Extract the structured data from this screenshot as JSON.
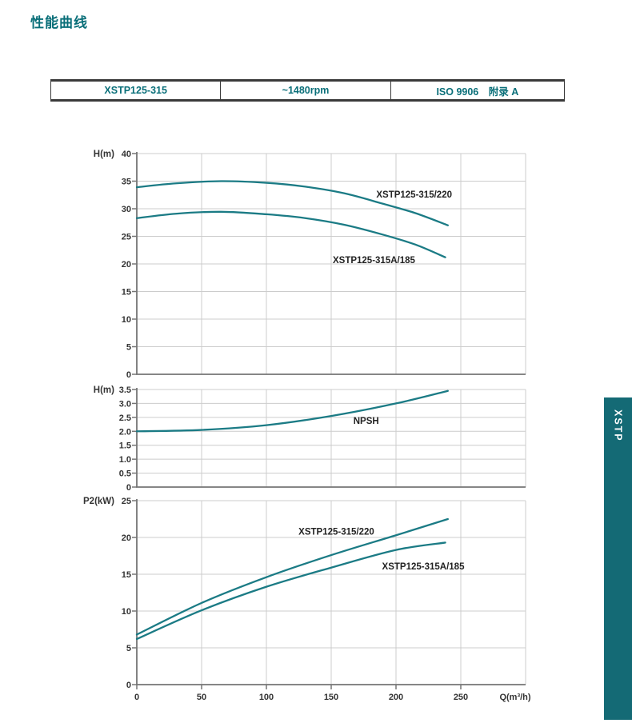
{
  "page": {
    "title": "性能曲线"
  },
  "header_table": {
    "cells": [
      {
        "label": "XSTP125-315"
      },
      {
        "label": "~1480rpm"
      },
      {
        "label": "ISO 9906　附录 A"
      }
    ]
  },
  "side_tab": {
    "label": "XSTP"
  },
  "colors": {
    "accent": "#0a6f79",
    "curve": "#1b7b85",
    "grid": "#cccccc",
    "spine": "#757575",
    "text": "#333333",
    "curve_label": "#222222",
    "tab_bg": "#146a75"
  },
  "chart_data": [
    {
      "type": "line",
      "title": "Head vs flow curves",
      "ylabel": "H(m)",
      "xlabel": "",
      "ylim": [
        0,
        40
      ],
      "xlim": [
        0,
        300
      ],
      "grid": true,
      "y_ticks": [
        [
          40,
          "40"
        ],
        [
          35,
          "35"
        ],
        [
          30,
          "30"
        ],
        [
          25,
          "25"
        ],
        [
          20,
          "20"
        ],
        [
          15,
          "15"
        ],
        [
          10,
          "10"
        ],
        [
          5,
          "5"
        ],
        [
          0,
          "0"
        ]
      ],
      "x_grid": [
        50,
        100,
        150,
        200,
        250,
        300
      ],
      "series": [
        {
          "name": "XSTP125-315/220",
          "points": [
            [
              0,
              33.9
            ],
            [
              30,
              34.6
            ],
            [
              65,
              35.0
            ],
            [
              100,
              34.7
            ],
            [
              130,
              34.0
            ],
            [
              160,
              32.8
            ],
            [
              190,
              30.9
            ],
            [
              215,
              29.2
            ],
            [
              240,
              27.0
            ]
          ]
        },
        {
          "name": "XSTP125-315A/185",
          "points": [
            [
              0,
              28.3
            ],
            [
              30,
              29.1
            ],
            [
              65,
              29.45
            ],
            [
              100,
              29.0
            ],
            [
              130,
              28.3
            ],
            [
              160,
              27.1
            ],
            [
              190,
              25.3
            ],
            [
              215,
              23.5
            ],
            [
              238,
              21.2
            ]
          ]
        }
      ],
      "annotations": [
        {
          "text": "XSTP125-315/220",
          "x": 214,
          "y": 32.6
        },
        {
          "text": "XSTP125-315A/185",
          "x": 183,
          "y": 20.7
        }
      ]
    },
    {
      "type": "line",
      "title": "NPSH curve",
      "ylabel": "H(m)",
      "xlabel": "",
      "ylim": [
        0,
        3.5
      ],
      "xlim": [
        0,
        300
      ],
      "grid": true,
      "y_ticks": [
        [
          3.5,
          "3.5"
        ],
        [
          3.0,
          "3.0"
        ],
        [
          2.5,
          "2.5"
        ],
        [
          2.0,
          "2.0"
        ],
        [
          1.5,
          "1.5"
        ],
        [
          1.0,
          "1.0"
        ],
        [
          0.5,
          "0.5"
        ],
        [
          0,
          "0"
        ]
      ],
      "x_grid": [
        50,
        100,
        150,
        200,
        250,
        300
      ],
      "series": [
        {
          "name": "NPSH",
          "points": [
            [
              0,
              2.0
            ],
            [
              50,
              2.05
            ],
            [
              100,
              2.22
            ],
            [
              150,
              2.55
            ],
            [
              200,
              3.0
            ],
            [
              240,
              3.45
            ]
          ]
        }
      ],
      "annotations": [
        {
          "text": "NPSH",
          "x": 177,
          "y": 2.38
        }
      ]
    },
    {
      "type": "line",
      "title": "Shaft power vs flow curves",
      "ylabel": "P2(kW)",
      "xlabel": "Q(m³/h)",
      "ylim": [
        0,
        25
      ],
      "xlim": [
        0,
        300
      ],
      "grid": true,
      "y_ticks": [
        [
          25,
          "25"
        ],
        [
          20,
          "20"
        ],
        [
          15,
          "15"
        ],
        [
          10,
          "10"
        ],
        [
          5,
          "5"
        ],
        [
          0,
          "0"
        ]
      ],
      "x_grid": [
        50,
        100,
        150,
        200,
        250,
        300
      ],
      "x_ticks": [
        [
          0,
          "0"
        ],
        [
          50,
          "50"
        ],
        [
          100,
          "100"
        ],
        [
          150,
          "150"
        ],
        [
          200,
          "200"
        ],
        [
          250,
          "250"
        ]
      ],
      "series": [
        {
          "name": "XSTP125-315/220",
          "points": [
            [
              0,
              6.8
            ],
            [
              50,
              11.1
            ],
            [
              100,
              14.6
            ],
            [
              150,
              17.6
            ],
            [
              200,
              20.3
            ],
            [
              240,
              22.5
            ]
          ]
        },
        {
          "name": "XSTP125-315A/185",
          "points": [
            [
              0,
              6.2
            ],
            [
              50,
              10.1
            ],
            [
              100,
              13.3
            ],
            [
              150,
              15.9
            ],
            [
              200,
              18.3
            ],
            [
              238,
              19.3
            ]
          ]
        }
      ],
      "annotations": [
        {
          "text": "XSTP125-315/220",
          "x": 154,
          "y": 20.8
        },
        {
          "text": "XSTP125-315A/185",
          "x": 221,
          "y": 16.1
        }
      ]
    }
  ]
}
